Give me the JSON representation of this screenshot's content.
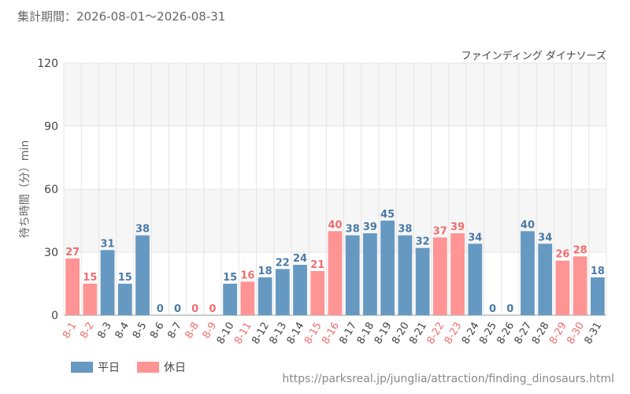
{
  "header": {
    "period_text": "集計期間：2026-08-01〜2026-08-31"
  },
  "legend": [
    {
      "label": "平日",
      "color": "#6699c2"
    },
    {
      "label": "休日",
      "color": "#ff9494"
    }
  ],
  "source": {
    "url_text": "https://parksreal.jp/junglia/attraction/finding_dinosaurs.html"
  },
  "colors": {
    "weekday_bar": "#6699c2",
    "holiday_bar": "#ff9494",
    "weekday_label": "#4a7aa6",
    "holiday_label": "#ef6e6e",
    "holiday_tick": "#ef6e6e",
    "weekday_tick": "#444444",
    "band": "#f6f6f6",
    "grid": "#e4e4e4"
  },
  "chart_data": {
    "type": "bar",
    "title": "ファインディング ダイナソーズ",
    "ylabel": "待ち時間（分）min",
    "xlabel": "",
    "ylim": [
      0,
      120
    ],
    "yticks": [
      0,
      30,
      60,
      90,
      120
    ],
    "grid": true,
    "categories": [
      "8-1",
      "8-2",
      "8-3",
      "8-4",
      "8-5",
      "8-6",
      "8-7",
      "8-8",
      "8-9",
      "8-10",
      "8-11",
      "8-12",
      "8-13",
      "8-14",
      "8-15",
      "8-16",
      "8-17",
      "8-18",
      "8-19",
      "8-20",
      "8-21",
      "8-22",
      "8-23",
      "8-24",
      "8-25",
      "8-26",
      "8-27",
      "8-28",
      "8-29",
      "8-30",
      "8-31"
    ],
    "values": [
      27,
      15,
      31,
      15,
      38,
      0,
      0,
      0,
      0,
      15,
      16,
      18,
      22,
      24,
      21,
      40,
      38,
      39,
      45,
      38,
      32,
      37,
      39,
      34,
      0,
      0,
      40,
      34,
      26,
      28,
      18
    ],
    "day_type": [
      "休日",
      "休日",
      "平日",
      "平日",
      "平日",
      "平日",
      "平日",
      "休日",
      "休日",
      "平日",
      "休日",
      "平日",
      "平日",
      "平日",
      "休日",
      "休日",
      "平日",
      "平日",
      "平日",
      "平日",
      "平日",
      "休日",
      "休日",
      "平日",
      "平日",
      "平日",
      "平日",
      "平日",
      "休日",
      "休日",
      "平日"
    ]
  }
}
